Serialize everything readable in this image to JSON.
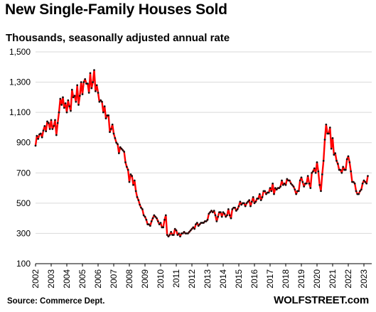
{
  "header": {
    "title": "New Single-Family Houses Sold",
    "subtitle": "Thousands, seasonally adjusted annual rate"
  },
  "footer": {
    "source": "Source: Commerce Dept.",
    "brand": "WOLFSTREET.com"
  },
  "colors": {
    "line": "#ff0000",
    "points": "#111111",
    "grid": "#d9d9d9",
    "axis": "#000000"
  },
  "chart_data": {
    "type": "line",
    "title": "New Single-Family Houses Sold",
    "subtitle": "Thousands, seasonally adjusted annual rate",
    "xlabel": "",
    "ylabel": "",
    "ylim": [
      100,
      1500
    ],
    "xlim": [
      2002,
      2023.5
    ],
    "grid": true,
    "legend": "none",
    "y_ticks": [
      "100",
      "300",
      "500",
      "700",
      "900",
      "1,100",
      "1,300",
      "1,500"
    ],
    "x_ticks": [
      "2002",
      "2003",
      "2004",
      "2005",
      "2006",
      "2007",
      "2008",
      "2009",
      "2010",
      "2011",
      "2012",
      "2013",
      "2014",
      "2015",
      "2016",
      "2017",
      "2018",
      "2019",
      "2020",
      "2021",
      "2022",
      "2023"
    ],
    "series": [
      {
        "frequency": "monthly",
        "start": "2002-01",
        "values": [
          880,
          945,
          925,
          955,
          960,
          935,
          980,
          1010,
          975,
          1040,
          1030,
          990,
          1050,
          990,
          1010,
          1050,
          950,
          1030,
          1100,
          1190,
          1150,
          1200,
          1130,
          1160,
          1100,
          1180,
          1140,
          1110,
          1250,
          1200,
          1210,
          1170,
          1280,
          1150,
          1210,
          1300,
          1220,
          1300,
          1320,
          1290,
          1290,
          1230,
          1360,
          1260,
          1300,
          1380,
          1240,
          1280,
          1230,
          1170,
          1180,
          1170,
          1100,
          1140,
          1060,
          1080,
          1080,
          970,
          990,
          1020,
          960,
          930,
          900,
          890,
          830,
          870,
          860,
          850,
          840,
          770,
          740,
          720,
          640,
          690,
          680,
          620,
          650,
          580,
          540,
          520,
          490,
          470,
          460,
          420,
          410,
          390,
          360,
          360,
          350,
          380,
          400,
          420,
          410,
          400,
          380,
          360,
          370,
          340,
          340,
          390,
          420,
          290,
          280,
          290,
          310,
          290,
          290,
          330,
          320,
          290,
          300,
          280,
          300,
          300,
          310,
          300,
          300,
          300,
          310,
          320,
          330,
          340,
          330,
          360,
          370,
          350,
          360,
          370,
          370,
          370,
          380,
          380,
          390,
          430,
          440,
          450,
          440,
          450,
          420,
          380,
          410,
          440,
          440,
          410,
          440,
          430,
          410,
          420,
          460,
          420,
          400,
          460,
          470,
          470,
          450,
          460,
          480,
          510,
          490,
          500,
          500,
          480,
          500,
          510,
          520,
          480,
          510,
          540,
          500,
          510,
          530,
          530,
          560,
          520,
          540,
          580,
          580,
          560,
          570,
          570,
          600,
          580,
          630,
          560,
          600,
          590,
          600,
          600,
          610,
          650,
          620,
          630,
          620,
          660,
          650,
          650,
          630,
          620,
          610,
          590,
          560,
          580,
          580,
          650,
          670,
          640,
          610,
          630,
          630,
          680,
          630,
          600,
          700,
          710,
          730,
          700,
          770,
          710,
          620,
          580,
          690,
          780,
          920,
          1020,
          960,
          960,
          1000,
          860,
          930,
          820,
          830,
          780,
          760,
          720,
          720,
          700,
          740,
          720,
          720,
          790,
          810,
          770,
          710,
          640,
          640,
          630,
          580,
          560,
          560,
          580,
          590,
          630,
          650,
          640,
          630,
          680
        ]
      }
    ]
  }
}
